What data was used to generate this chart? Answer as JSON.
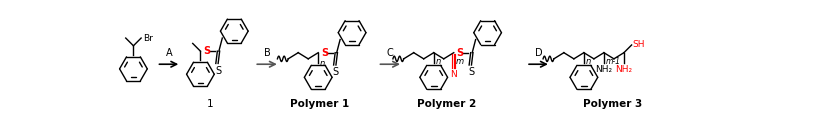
{
  "figsize": [
    8.17,
    1.31
  ],
  "dpi": 100,
  "bg_color": "#ffffff",
  "black": "#000000",
  "red": "#ff0000",
  "gray": "#555555",
  "arrow_label_A": "A",
  "arrow_label_B": "B",
  "arrow_label_C": "C",
  "arrow_label_D": "D",
  "label_1": "1",
  "label_p1": "Polymer 1",
  "label_p2": "Polymer 2",
  "label_p3": "Polymer 3"
}
